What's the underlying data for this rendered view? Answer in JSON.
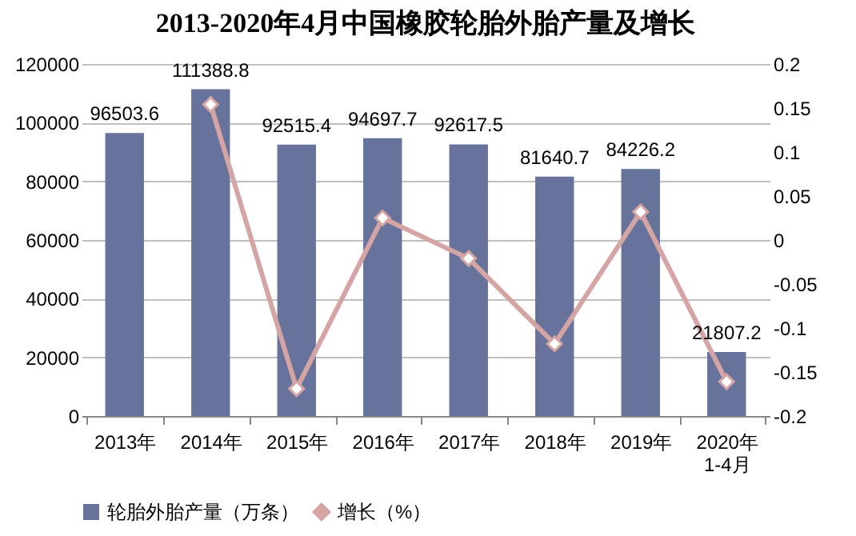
{
  "chart_data": {
    "type": "bar",
    "title": "2013-2020年4月中国橡胶轮胎外胎产量及增长",
    "categories": [
      "2013年",
      "2014年",
      "2015年",
      "2016年",
      "2017年",
      "2018年",
      "2019年",
      "2020年\n1-4月"
    ],
    "series": [
      {
        "name": "轮胎外胎产量（万条）",
        "color": "#67739b",
        "values": [
          96503.6,
          111388.8,
          92515.4,
          94697.7,
          92617.5,
          81640.7,
          84226.2,
          21807.2
        ]
      },
      {
        "name": "增长（%）",
        "type": "line",
        "axis": "y2",
        "color": "#d4a5a4",
        "marker": "diamond",
        "values": [
          null,
          0.154,
          -0.169,
          0.025,
          -0.021,
          -0.118,
          0.032,
          -0.161
        ]
      }
    ],
    "ylim": [
      0,
      120000
    ],
    "yticks": [
      0,
      20000,
      40000,
      60000,
      80000,
      100000,
      120000
    ],
    "y2lim": [
      -0.2,
      0.2
    ],
    "y2ticks": [
      -0.2,
      -0.15,
      -0.1,
      -0.05,
      0,
      0.05,
      0.1,
      0.15,
      0.2
    ],
    "value_labels": [
      "96503.6",
      "111388.8",
      "92515.4",
      "94697.7",
      "92617.5",
      "81640.7",
      "84226.2",
      "21807.2"
    ],
    "grid": "y",
    "legend": "bottom"
  }
}
